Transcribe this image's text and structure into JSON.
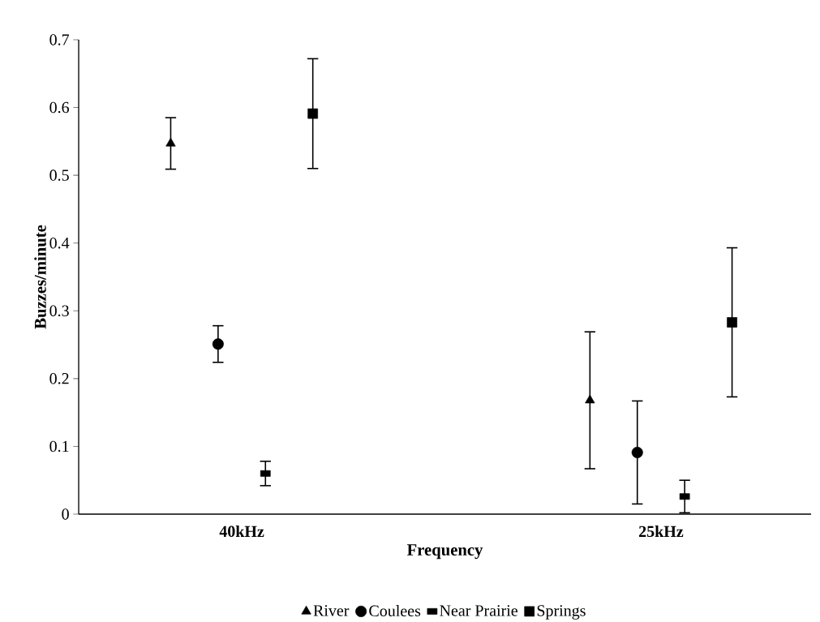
{
  "chart_data": {
    "type": "scatter",
    "categories": [
      "40kHz",
      "25kHz"
    ],
    "xlabel": "Frequency",
    "ylabel": "Buzzes/minute",
    "ylim": [
      0,
      0.7
    ],
    "yticks": [
      0,
      0.1,
      0.2,
      0.3,
      0.4,
      0.5,
      0.6,
      0.7
    ],
    "legend": "bottom",
    "grid": false,
    "series": [
      {
        "name": "River",
        "color": "#000000",
        "marker": "triangle",
        "values": [
          0.547,
          0.168
        ],
        "errors": [
          0.038,
          0.101
        ]
      },
      {
        "name": "Coulees",
        "color": "#000000",
        "marker": "circle",
        "values": [
          0.251,
          0.091
        ],
        "errors": [
          0.027,
          0.076
        ]
      },
      {
        "name": "Near Prairie",
        "color": "#000000",
        "marker": "square",
        "values": [
          0.06,
          0.026
        ],
        "errors": [
          0.018,
          0.024
        ]
      },
      {
        "name": "Springs",
        "color": "#000000",
        "marker": "square",
        "values": [
          0.591,
          0.283
        ],
        "errors": [
          0.081,
          0.11
        ]
      }
    ]
  }
}
